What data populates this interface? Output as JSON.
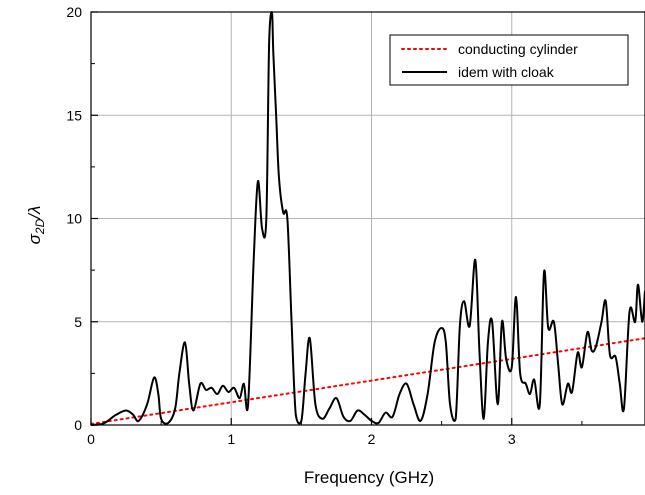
{
  "chart_data": {
    "type": "line",
    "title": "",
    "xlabel": "Frequency (GHz)",
    "ylabel_main": "σ",
    "ylabel_sub": "2D",
    "ylabel_tail": "/λ",
    "xlim": [
      0,
      3.95
    ],
    "ylim": [
      0,
      20
    ],
    "x_ticks": [
      0,
      1,
      2,
      3
    ],
    "x_tick_labels": [
      "0",
      "1",
      "2",
      "3"
    ],
    "y_ticks": [
      0,
      5,
      10,
      15,
      20
    ],
    "y_tick_labels": [
      "0",
      "5",
      "10",
      "15",
      "20"
    ],
    "grid": true,
    "legend_position": "top-right",
    "series": [
      {
        "name": "conducting cylinder",
        "style": "dotted",
        "color": "#ff0000",
        "x": [
          0,
          3.95
        ],
        "y": [
          0.05,
          4.2
        ]
      },
      {
        "name": "idem with cloak",
        "style": "solid",
        "color": "#000000",
        "x": [
          0,
          0.08,
          0.12,
          0.18,
          0.25,
          0.3,
          0.34,
          0.4,
          0.45,
          0.48,
          0.5,
          0.55,
          0.6,
          0.63,
          0.67,
          0.7,
          0.73,
          0.78,
          0.82,
          0.86,
          0.9,
          0.94,
          0.98,
          1.02,
          1.06,
          1.09,
          1.12,
          1.16,
          1.19,
          1.22,
          1.25,
          1.27,
          1.29,
          1.3,
          1.32,
          1.34,
          1.37,
          1.4,
          1.43,
          1.46,
          1.5,
          1.53,
          1.56,
          1.6,
          1.65,
          1.7,
          1.75,
          1.8,
          1.85,
          1.9,
          1.95,
          2.0,
          2.05,
          2.1,
          2.15,
          2.2,
          2.25,
          2.3,
          2.35,
          2.4,
          2.45,
          2.5,
          2.53,
          2.56,
          2.6,
          2.63,
          2.66,
          2.7,
          2.74,
          2.77,
          2.8,
          2.83,
          2.86,
          2.9,
          2.93,
          2.96,
          3.0,
          3.03,
          3.06,
          3.1,
          3.13,
          3.16,
          3.2,
          3.23,
          3.26,
          3.3,
          3.33,
          3.36,
          3.4,
          3.43,
          3.47,
          3.5,
          3.54,
          3.57,
          3.6,
          3.64,
          3.67,
          3.7,
          3.74,
          3.77,
          3.8,
          3.84,
          3.88,
          3.9,
          3.93,
          3.95
        ],
        "y": [
          0,
          0.05,
          0.2,
          0.5,
          0.7,
          0.5,
          0.2,
          1.0,
          2.3,
          1.5,
          0.3,
          0.1,
          0.8,
          2.5,
          4.0,
          2.0,
          0.7,
          2.0,
          1.7,
          1.8,
          1.5,
          1.9,
          1.6,
          1.8,
          1.3,
          2.0,
          1.0,
          8.0,
          11.8,
          9.5,
          10.0,
          18.5,
          20.0,
          18.0,
          15.0,
          12.0,
          10.3,
          10.0,
          5.0,
          0.5,
          0.2,
          2.5,
          4.2,
          1.0,
          0.3,
          0.8,
          1.3,
          0.4,
          0.2,
          0.7,
          0.5,
          0.2,
          0.1,
          0.6,
          0.4,
          1.5,
          2.0,
          1.0,
          0.2,
          1.5,
          4.0,
          4.7,
          4.0,
          1.0,
          0.3,
          4.8,
          6.0,
          4.8,
          8.0,
          3.5,
          0.3,
          4.0,
          5.0,
          1.0,
          5.0,
          3.2,
          2.8,
          6.2,
          2.5,
          2.0,
          1.5,
          2.2,
          1.0,
          7.4,
          4.7,
          5.0,
          3.0,
          1.0,
          2.0,
          1.6,
          3.5,
          2.8,
          4.5,
          3.6,
          3.8,
          5.0,
          6.0,
          3.4,
          3.3,
          2.0,
          0.8,
          5.5,
          5.0,
          6.8,
          5.0,
          6.5
        ]
      }
    ]
  }
}
